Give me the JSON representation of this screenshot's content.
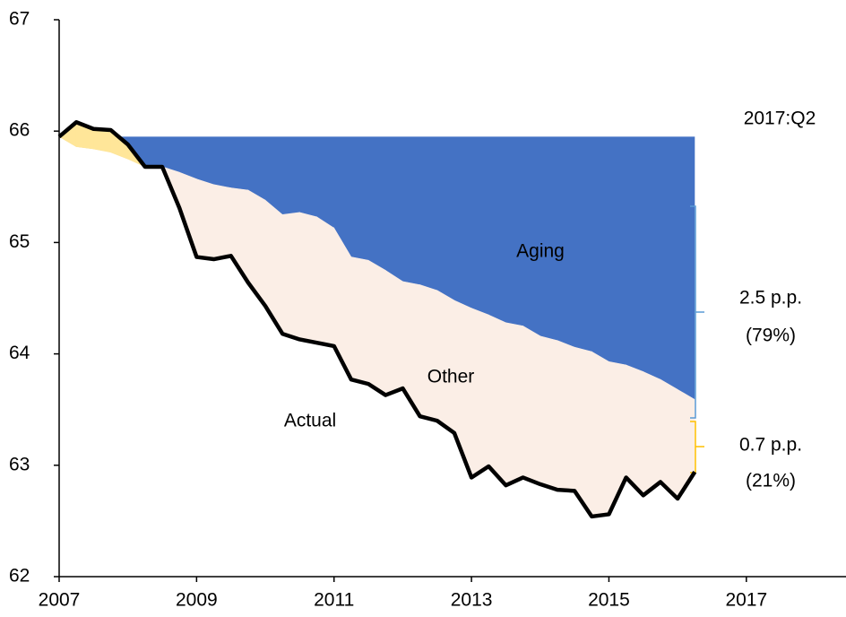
{
  "chart_data": {
    "type": "area",
    "x": [
      2007,
      2007.25,
      2007.5,
      2007.75,
      2008,
      2008.25,
      2008.5,
      2008.75,
      2009,
      2009.25,
      2009.5,
      2009.75,
      2010,
      2010.25,
      2010.5,
      2010.75,
      2011,
      2011.25,
      2011.5,
      2011.75,
      2012,
      2012.25,
      2012.5,
      2012.75,
      2013,
      2013.25,
      2013.5,
      2013.75,
      2014,
      2014.25,
      2014.5,
      2014.75,
      2015,
      2015.25,
      2015.5,
      2015.75,
      2016,
      2016.25
    ],
    "baseline": 65.95,
    "series": [
      {
        "name": "Aging",
        "color": "#4472c4",
        "values": [
          65.95,
          65.86,
          65.84,
          65.81,
          65.75,
          65.68,
          65.68,
          65.63,
          65.57,
          65.52,
          65.49,
          65.47,
          65.38,
          65.25,
          65.27,
          65.23,
          65.13,
          64.87,
          64.84,
          64.75,
          64.65,
          64.62,
          64.57,
          64.48,
          64.41,
          64.35,
          64.28,
          64.25,
          64.16,
          64.12,
          64.06,
          64.02,
          63.93,
          63.9,
          63.84,
          63.77,
          63.68,
          63.59
        ]
      },
      {
        "name": "Actual",
        "color": "#000000",
        "values": [
          65.95,
          66.08,
          66.02,
          66.01,
          65.88,
          65.68,
          65.68,
          65.31,
          64.87,
          64.85,
          64.88,
          64.64,
          64.43,
          64.18,
          64.13,
          64.1,
          64.07,
          63.77,
          63.73,
          63.63,
          63.69,
          63.44,
          63.4,
          63.29,
          62.89,
          62.99,
          62.82,
          62.89,
          62.83,
          62.78,
          62.77,
          62.54,
          62.56,
          62.89,
          62.73,
          62.85,
          62.7,
          62.94
        ]
      }
    ],
    "other_label": "Other",
    "other_color": "#fbeee6",
    "above_color": "#ffe699",
    "period_label": "2017:Q2",
    "aging_share": [
      "2.5 p.p.",
      "(79%)"
    ],
    "aging_share_color": "#5b9bd5",
    "other_share": [
      "0.7 p.p.",
      "(21%)"
    ],
    "other_share_color": "#ffc000",
    "xlim": [
      2007,
      2018.45
    ],
    "ylim": [
      62,
      67
    ],
    "xticks": [
      2007,
      2009,
      2011,
      2013,
      2015,
      2017
    ],
    "yticks": [
      62,
      63,
      64,
      65,
      66,
      67
    ]
  }
}
